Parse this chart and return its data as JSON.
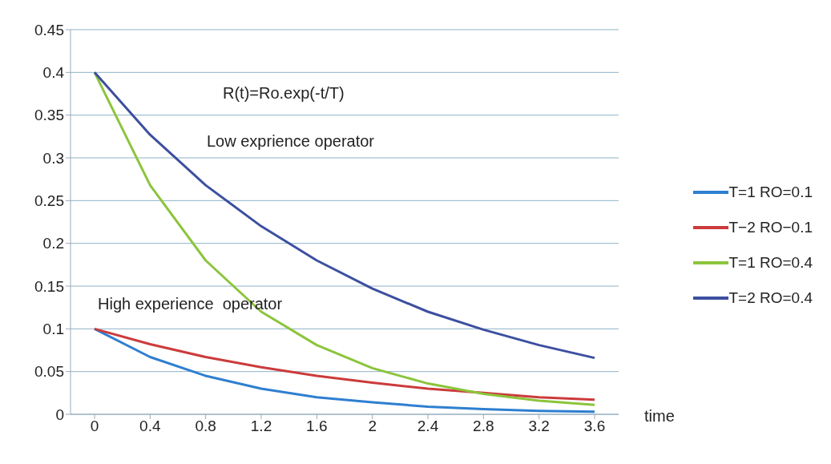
{
  "chart_data": {
    "type": "line",
    "xlabel": "time",
    "categories": [
      "0",
      "0.4",
      "0.8",
      "1.2",
      "1.6",
      "2",
      "2.4",
      "2.8",
      "3.2",
      "3.6"
    ],
    "series": [
      {
        "name": "T=1 RO=0.1",
        "color": "#2e7fd0",
        "values": [
          0.1,
          0.067,
          0.045,
          0.03,
          0.02,
          0.014,
          0.009,
          0.006,
          0.004,
          0.003
        ]
      },
      {
        "name": "T−2 RO−0.1",
        "color": "#cc3b3b",
        "values": [
          0.1,
          0.082,
          0.067,
          0.055,
          0.045,
          0.037,
          0.03,
          0.025,
          0.02,
          0.017
        ]
      },
      {
        "name": "T=1 RO=0.4",
        "color": "#8cc43c",
        "values": [
          0.4,
          0.268,
          0.18,
          0.12,
          0.081,
          0.054,
          0.036,
          0.024,
          0.016,
          0.011
        ]
      },
      {
        "name": "T=2 RO=0.4",
        "color": "#3c4fa0",
        "values": [
          0.4,
          0.327,
          0.268,
          0.22,
          0.18,
          0.147,
          0.12,
          0.099,
          0.081,
          0.066
        ]
      }
    ],
    "ylim": [
      0,
      0.45
    ],
    "yticks": [
      0,
      0.05,
      0.1,
      0.15,
      0.2,
      0.25,
      0.3,
      0.35,
      0.4,
      0.45
    ],
    "grid": "y",
    "legend": "right",
    "marker": "none",
    "annotations": [
      "R(t)=Ro.exp(-t/T)",
      "Low exprience operator",
      "High experience  operator"
    ]
  }
}
